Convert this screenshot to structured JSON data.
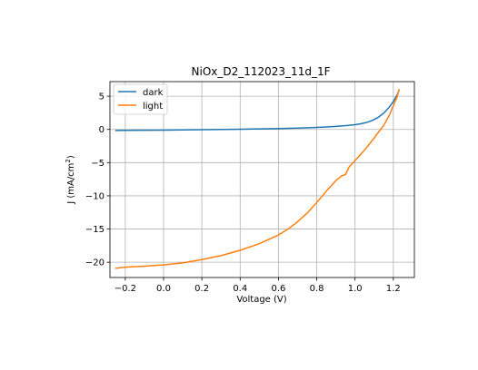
{
  "chart_data": {
    "type": "line",
    "title": "NiOx_D2_112023_11d_1F",
    "xlabel": "Voltage (V)",
    "ylabel_main": "J (mA/cm",
    "ylabel_sup": "2",
    "ylabel_close": ")",
    "xlim": [
      -0.28,
      1.31
    ],
    "ylim": [
      -22.3,
      7.2
    ],
    "xticks": [
      -0.2,
      0.0,
      0.2,
      0.4,
      0.6,
      0.8,
      1.0,
      1.2
    ],
    "xtick_labels": [
      "−0.2",
      "0.0",
      "0.2",
      "0.4",
      "0.6",
      "0.8",
      "1.0",
      "1.2"
    ],
    "yticks": [
      -20,
      -15,
      -10,
      -5,
      0,
      5
    ],
    "ytick_labels": [
      "−20",
      "−15",
      "−10",
      "−5",
      "0",
      "5"
    ],
    "grid": true,
    "legend_position": "upper-left",
    "series": [
      {
        "name": "dark",
        "color": "#1f77b4",
        "x": [
          -0.25,
          -0.2,
          -0.1,
          0.0,
          0.1,
          0.2,
          0.3,
          0.4,
          0.5,
          0.6,
          0.7,
          0.8,
          0.85,
          0.9,
          0.95,
          1.0,
          1.03,
          1.06,
          1.09,
          1.12,
          1.15,
          1.18,
          1.2,
          1.22,
          1.23
        ],
        "y": [
          -0.15,
          -0.14,
          -0.12,
          -0.1,
          -0.07,
          -0.04,
          -0.01,
          0.03,
          0.08,
          0.13,
          0.2,
          0.3,
          0.37,
          0.46,
          0.57,
          0.72,
          0.85,
          1.05,
          1.35,
          1.8,
          2.45,
          3.4,
          4.2,
          5.2,
          5.9
        ]
      },
      {
        "name": "light",
        "color": "#ff7f0e",
        "x": [
          -0.25,
          -0.2,
          -0.1,
          0.0,
          0.1,
          0.2,
          0.3,
          0.4,
          0.5,
          0.6,
          0.65,
          0.7,
          0.75,
          0.8,
          0.85,
          0.9,
          0.93,
          0.95,
          0.97,
          1.0,
          1.05,
          1.1,
          1.12,
          1.15,
          1.18,
          1.2,
          1.22,
          1.23
        ],
        "y": [
          -20.9,
          -20.75,
          -20.6,
          -20.4,
          -20.1,
          -19.6,
          -19.0,
          -18.2,
          -17.2,
          -15.9,
          -15.0,
          -13.9,
          -12.6,
          -11.0,
          -9.3,
          -7.7,
          -7.0,
          -6.8,
          -5.6,
          -4.7,
          -3.1,
          -1.3,
          -0.5,
          0.6,
          2.2,
          3.6,
          4.9,
          6.0
        ]
      }
    ]
  }
}
